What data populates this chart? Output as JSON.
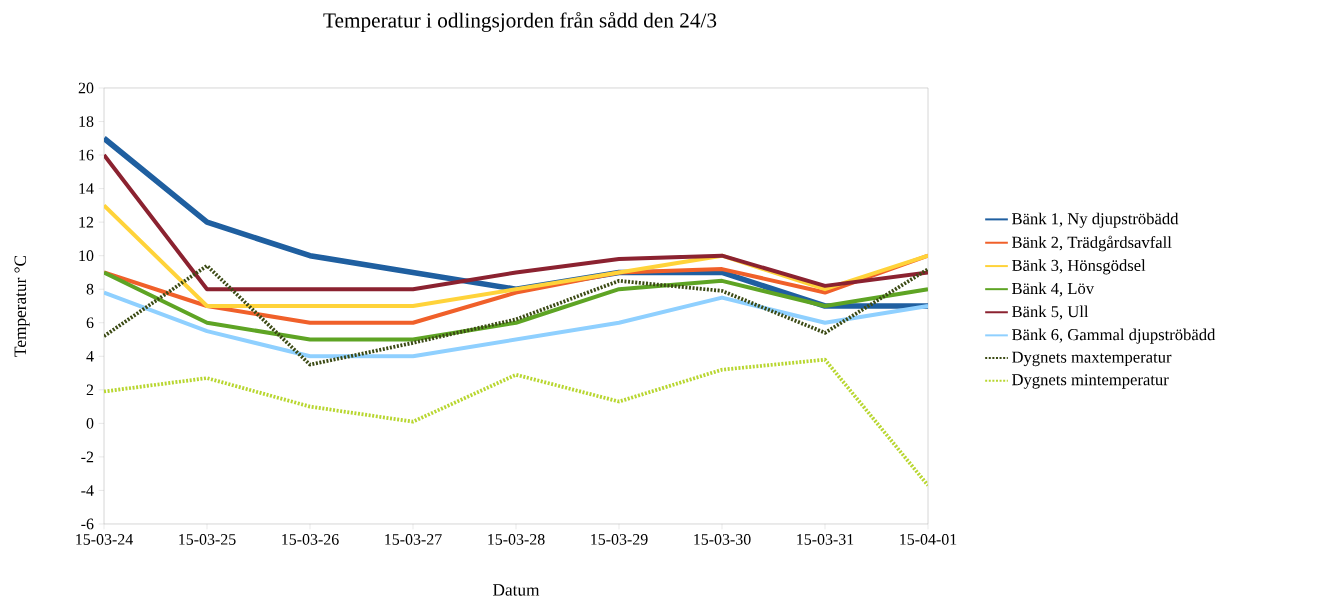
{
  "chart_data": {
    "type": "line",
    "title": "Temperatur i odlingsjorden från sådd den 24/3",
    "xlabel": "Datum",
    "ylabel": "Temperatur °C",
    "categories": [
      "15-03-24",
      "15-03-25",
      "15-03-26",
      "15-03-27",
      "15-03-28",
      "15-03-29",
      "15-03-30",
      "15-03-31",
      "15-04-01"
    ],
    "series": [
      {
        "name": "Bänk 1, Ny djupströbädd",
        "color": "#1f5fa0",
        "values": [
          17,
          12,
          10,
          9,
          8,
          9,
          9,
          7,
          7
        ]
      },
      {
        "name": "Bänk 2, Trädgårdsavfall",
        "color": "#f0602a",
        "values": [
          9,
          7,
          6,
          6,
          7.8,
          9,
          9.2,
          7.8,
          10
        ]
      },
      {
        "name": "Bänk 3, Hönsgödsel",
        "color": "#ffd33a",
        "values": [
          13,
          7,
          7,
          7,
          8,
          9,
          10,
          8,
          10
        ]
      },
      {
        "name": "Bänk 4, Löv",
        "color": "#5ea424",
        "values": [
          9,
          6,
          5,
          5,
          6,
          8,
          8.5,
          7,
          8
        ]
      },
      {
        "name": "Bänk 5, Ull",
        "color": "#8b2230",
        "values": [
          16,
          8,
          8,
          8,
          9,
          9.8,
          10,
          8.2,
          9
        ]
      },
      {
        "name": "Bänk 6, Gammal djupströbädd",
        "color": "#8fd0ff",
        "values": [
          7.8,
          5.5,
          4,
          4,
          5,
          6,
          7.5,
          6,
          7
        ]
      },
      {
        "name": "Dygnets maxtemperatur",
        "color": "#3b4a14",
        "line_style": "dotted",
        "values": [
          5.2,
          9.4,
          3.5,
          4.8,
          6.2,
          8.5,
          7.9,
          5.4,
          9.2
        ]
      },
      {
        "name": "Dygnets mintemperatur",
        "color": "#b8d630",
        "line_style": "dotted",
        "values": [
          1.9,
          2.7,
          1.0,
          0.1,
          2.9,
          1.3,
          3.2,
          3.8,
          -3.7
        ]
      }
    ],
    "ylim": [
      -6,
      20
    ],
    "yticks": [
      -6,
      -4,
      -2,
      0,
      2,
      4,
      6,
      8,
      10,
      12,
      14,
      16,
      18,
      20
    ],
    "grid": false,
    "legend": "right",
    "marker": "none",
    "line_style": "solid"
  }
}
